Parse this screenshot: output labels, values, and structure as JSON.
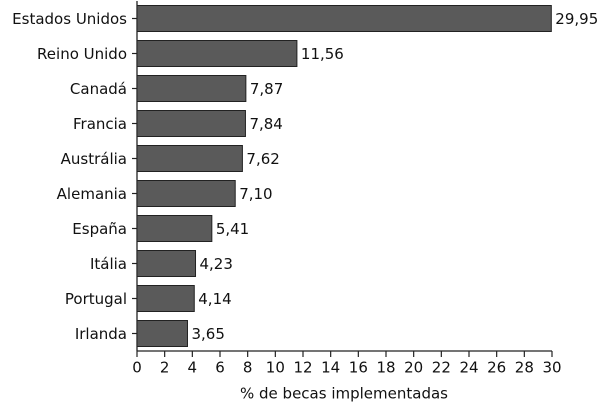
{
  "chart_data": {
    "type": "bar",
    "orientation": "horizontal",
    "x_label": "% de becas implementadas",
    "categories": [
      "Estados Unidos",
      "Reino Unido",
      "Canadá",
      "Francia",
      "Austrália",
      "Alemania",
      "España",
      "Itália",
      "Portugal",
      "Irlanda"
    ],
    "values": [
      29.95,
      11.56,
      7.87,
      7.84,
      7.62,
      7.1,
      5.41,
      4.23,
      4.14,
      3.65
    ],
    "value_labels": [
      "29,95",
      "11,56",
      "7,87",
      "7,84",
      "7,62",
      "7,10",
      "5,41",
      "4,23",
      "4,14",
      "3,65"
    ],
    "color": "#5a5a5a",
    "xlim": [
      0,
      30
    ],
    "xticks": [
      0,
      2,
      4,
      6,
      8,
      10,
      12,
      14,
      16,
      18,
      20,
      22,
      24,
      26,
      28,
      30
    ],
    "grid": false
  }
}
